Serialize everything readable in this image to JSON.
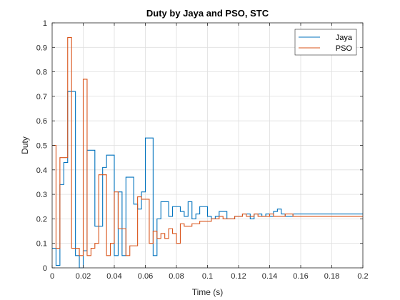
{
  "chart_data": {
    "type": "line",
    "step": true,
    "title": "Duty by Jaya and PSO, STC",
    "xlabel": "Time (s)",
    "ylabel": "Duty",
    "xlim": [
      0,
      0.2
    ],
    "ylim": [
      0,
      1
    ],
    "xticks": [
      0,
      0.02,
      0.04,
      0.06,
      0.08,
      0.1,
      0.12,
      0.14,
      0.16,
      0.18,
      0.2
    ],
    "xtick_labels": [
      "0",
      "0.02",
      "0.04",
      "0.06",
      "0.08",
      "0.1",
      "0.12",
      "0.14",
      "0.16",
      "0.18",
      "0.2"
    ],
    "yticks": [
      0,
      0.1,
      0.2,
      0.3,
      0.4,
      0.5,
      0.6,
      0.7,
      0.8,
      0.9,
      1
    ],
    "ytick_labels": [
      "0",
      "0.1",
      "0.2",
      "0.3",
      "0.4",
      "0.5",
      "0.6",
      "0.7",
      "0.8",
      "0.9",
      "1"
    ],
    "grid": true,
    "legend_position": "top-right",
    "series": [
      {
        "name": "Jaya",
        "color": "#0072BD",
        "x": [
          0,
          0.0025,
          0.005,
          0.0075,
          0.01,
          0.0125,
          0.015,
          0.0175,
          0.02,
          0.0225,
          0.025,
          0.0275,
          0.03,
          0.0325,
          0.035,
          0.0375,
          0.04,
          0.0425,
          0.045,
          0.0475,
          0.05,
          0.0525,
          0.055,
          0.0575,
          0.06,
          0.0625,
          0.065,
          0.0675,
          0.07,
          0.0725,
          0.075,
          0.0775,
          0.08,
          0.0825,
          0.085,
          0.0875,
          0.09,
          0.0925,
          0.095,
          0.0975,
          0.1,
          0.1025,
          0.105,
          0.1075,
          0.11,
          0.1125,
          0.115,
          0.1175,
          0.12,
          0.1225,
          0.125,
          0.1275,
          0.13,
          0.1325,
          0.135,
          0.1375,
          0.14,
          0.1425,
          0.145,
          0.1475,
          0.15,
          0.155,
          0.16,
          0.165,
          0.17,
          0.175,
          0.18,
          0.185,
          0.19,
          0.195
        ],
        "y": [
          0.08,
          0.01,
          0.34,
          0.43,
          0.72,
          0.72,
          0.05,
          0.0,
          0.07,
          0.48,
          0.48,
          0.17,
          0.17,
          0.41,
          0.46,
          0.46,
          0.05,
          0.31,
          0.05,
          0.37,
          0.37,
          0.26,
          0.24,
          0.31,
          0.53,
          0.53,
          0.05,
          0.2,
          0.27,
          0.27,
          0.21,
          0.25,
          0.25,
          0.23,
          0.21,
          0.27,
          0.2,
          0.22,
          0.25,
          0.25,
          0.21,
          0.2,
          0.21,
          0.23,
          0.23,
          0.2,
          0.2,
          0.21,
          0.21,
          0.22,
          0.22,
          0.2,
          0.22,
          0.22,
          0.21,
          0.22,
          0.21,
          0.23,
          0.24,
          0.22,
          0.21,
          0.22,
          0.22,
          0.22,
          0.22,
          0.22,
          0.22,
          0.22,
          0.22,
          0.22
        ]
      },
      {
        "name": "PSO",
        "color": "#D95319",
        "x": [
          0,
          0.0025,
          0.005,
          0.0075,
          0.01,
          0.0125,
          0.015,
          0.0175,
          0.02,
          0.0225,
          0.025,
          0.0275,
          0.03,
          0.0325,
          0.035,
          0.0375,
          0.04,
          0.0425,
          0.045,
          0.0475,
          0.05,
          0.0525,
          0.055,
          0.0575,
          0.06,
          0.0625,
          0.065,
          0.0675,
          0.07,
          0.0725,
          0.075,
          0.0775,
          0.08,
          0.0825,
          0.085,
          0.0875,
          0.09,
          0.0925,
          0.095,
          0.0975,
          0.1,
          0.1025,
          0.105,
          0.1075,
          0.11,
          0.1125,
          0.115,
          0.1175,
          0.12,
          0.1225,
          0.125,
          0.1275,
          0.13,
          0.1325,
          0.135,
          0.1375,
          0.14,
          0.1425,
          0.145,
          0.1475,
          0.15,
          0.155,
          0.16,
          0.165,
          0.17,
          0.175,
          0.18,
          0.185,
          0.19,
          0.195
        ],
        "y": [
          0.5,
          0.08,
          0.45,
          0.45,
          0.94,
          0.08,
          0.08,
          0.05,
          0.77,
          0.05,
          0.08,
          0.1,
          0.38,
          0.38,
          0.05,
          0.1,
          0.31,
          0.16,
          0.16,
          0.05,
          0.09,
          0.09,
          0.29,
          0.28,
          0.28,
          0.1,
          0.15,
          0.12,
          0.14,
          0.12,
          0.16,
          0.14,
          0.1,
          0.18,
          0.17,
          0.17,
          0.18,
          0.18,
          0.19,
          0.19,
          0.19,
          0.2,
          0.2,
          0.21,
          0.2,
          0.2,
          0.2,
          0.21,
          0.21,
          0.22,
          0.21,
          0.21,
          0.22,
          0.21,
          0.21,
          0.21,
          0.22,
          0.21,
          0.21,
          0.21,
          0.22,
          0.21,
          0.21,
          0.21,
          0.21,
          0.21,
          0.21,
          0.21,
          0.21,
          0.21
        ]
      }
    ]
  }
}
